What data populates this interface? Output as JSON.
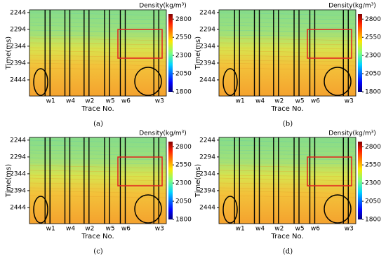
{
  "chart_data": [
    {
      "type": "heatmap",
      "caption": "(a)",
      "ylabel": "Time(ms)",
      "xlabel": "Trace No.",
      "colorbar_label": "Density(kg/m³)",
      "categories": [
        "w1",
        "w4",
        "w2",
        "w5",
        "w6",
        "w3"
      ],
      "ylim": [
        2236,
        2492
      ],
      "yticks": [
        2244,
        2294,
        2344,
        2394,
        2444
      ],
      "clim": [
        1800,
        2870
      ],
      "cticks": [
        1800,
        2050,
        2300,
        2550,
        2800
      ]
    },
    {
      "type": "heatmap",
      "caption": "(b)",
      "ylabel": "Time(ms)",
      "xlabel": "Trace No.",
      "colorbar_label": "Density(kg/m³)",
      "categories": [
        "w1",
        "w4",
        "w2",
        "w5",
        "w6",
        "w3"
      ],
      "ylim": [
        2236,
        2492
      ],
      "yticks": [
        2244,
        2294,
        2344,
        2394,
        2444
      ],
      "clim": [
        1800,
        2870
      ],
      "cticks": [
        1800,
        2050,
        2300,
        2550,
        2800
      ]
    },
    {
      "type": "heatmap",
      "caption": "(c)",
      "ylabel": "Time(ms)",
      "xlabel": "Trace No.",
      "colorbar_label": "Density(kg/m³)",
      "categories": [
        "w1",
        "w4",
        "w2",
        "w5",
        "w6",
        "w3"
      ],
      "ylim": [
        2236,
        2492
      ],
      "yticks": [
        2244,
        2294,
        2344,
        2394,
        2444
      ],
      "clim": [
        1800,
        2870
      ],
      "cticks": [
        1800,
        2050,
        2300,
        2550,
        2800
      ]
    },
    {
      "type": "heatmap",
      "caption": "(d)",
      "ylabel": "Time(ms)",
      "xlabel": "Trace No.",
      "colorbar_label": "Density(kg/m³)",
      "categories": [
        "w1",
        "w4",
        "w2",
        "w5",
        "w6",
        "w3"
      ],
      "ylim": [
        2236,
        2492
      ],
      "yticks": [
        2244,
        2294,
        2344,
        2394,
        2444
      ],
      "clim": [
        1800,
        2870
      ],
      "cticks": [
        1800,
        2050,
        2300,
        2550,
        2800
      ]
    }
  ]
}
